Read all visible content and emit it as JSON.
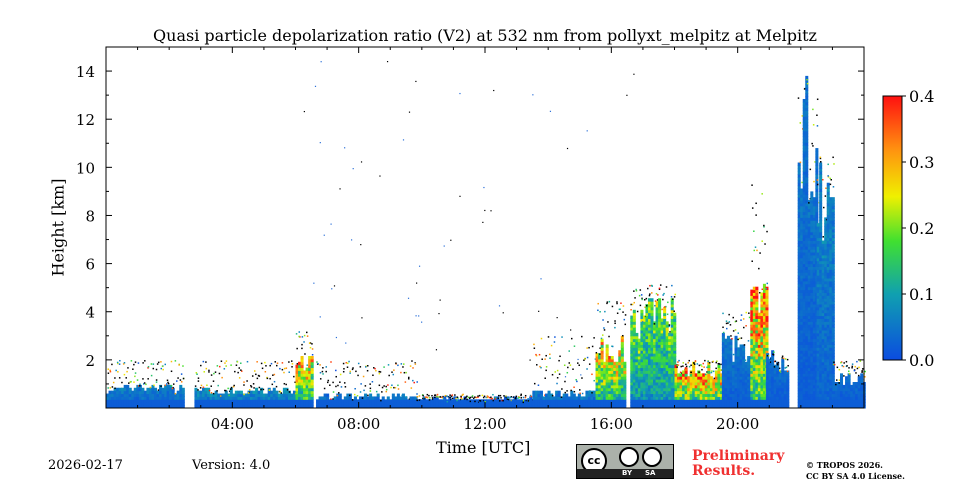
{
  "title": "Quasi particle depolarization ratio (V2) at 532 nm from pollyxt_melpitz at Melpitz",
  "footer": {
    "date": "2026-02-17",
    "version": "Version: 4.0",
    "preliminary_line1": "Preliminary",
    "preliminary_line2": "Results.",
    "copyright_line1": "© TROPOS 2026.",
    "copyright_line2": "CC BY SA 4.0 License.",
    "cc_by": "BY",
    "cc_sa": "SA",
    "cc": "cc"
  },
  "chart_data": {
    "type": "heatmap",
    "title": "Quasi particle depolarization ratio (V2) at 532 nm from pollyxt_melpitz at Melpitz",
    "xlabel": "Time [UTC]",
    "ylabel": "Height [km]",
    "xlim": [
      0,
      24
    ],
    "ylim": [
      0,
      15
    ],
    "xticks": [
      {
        "v": 4,
        "label": "04:00"
      },
      {
        "v": 8,
        "label": "08:00"
      },
      {
        "v": 12,
        "label": "12:00"
      },
      {
        "v": 16,
        "label": "16:00"
      },
      {
        "v": 20,
        "label": "20:00"
      }
    ],
    "yticks": [
      {
        "v": 2,
        "label": "2"
      },
      {
        "v": 4,
        "label": "4"
      },
      {
        "v": 6,
        "label": "6"
      },
      {
        "v": 8,
        "label": "8"
      },
      {
        "v": 10,
        "label": "10"
      },
      {
        "v": 12,
        "label": "12"
      },
      {
        "v": 14,
        "label": "14"
      }
    ],
    "colorbar": {
      "range": [
        0,
        0.4
      ],
      "ticks": [
        "0.0",
        "0.1",
        "0.2",
        "0.3",
        "0.4"
      ],
      "colormap": "jet"
    },
    "gaps_h": [
      [
        2.45,
        2.8
      ],
      [
        6.5,
        6.65
      ],
      [
        16.45,
        16.6
      ]
    ],
    "segments": [
      {
        "t0": 0,
        "t1": 2.45,
        "top": 0.8,
        "val": 0.06,
        "noise_top": 2.0
      },
      {
        "t0": 2.8,
        "t1": 6.0,
        "top": 0.7,
        "val": 0.08,
        "noise_top": 2.0
      },
      {
        "t0": 6.0,
        "t1": 6.5,
        "top": 1.8,
        "val": 0.3,
        "noise_top": 3.2
      },
      {
        "t0": 6.65,
        "t1": 9.8,
        "top": 0.45,
        "val": 0.05,
        "noise_top": 2.0
      },
      {
        "t0": 9.8,
        "t1": 13.5,
        "top": 0.35,
        "val": 0.02,
        "noise_top": 0.6
      },
      {
        "t0": 13.5,
        "t1": 15.5,
        "top": 0.6,
        "val": 0.06,
        "noise_top": 3.0
      },
      {
        "t0": 15.5,
        "t1": 16.45,
        "top": 2.5,
        "val": 0.28,
        "noise_top": 4.5
      },
      {
        "t0": 16.6,
        "t1": 18.0,
        "top": 3.8,
        "val": 0.2,
        "noise_top": 5.2
      },
      {
        "t0": 18.0,
        "t1": 19.5,
        "top": 1.6,
        "val": 0.34,
        "noise_top": 2.0
      },
      {
        "t0": 19.5,
        "t1": 20.5,
        "top": 2.6,
        "val": 0.05,
        "noise_top": 4.0
      },
      {
        "t0": 20.4,
        "t1": 20.9,
        "top": 4.6,
        "val": 0.36,
        "noise_top": 9.5
      },
      {
        "t0": 20.9,
        "t1": 21.6,
        "top": 2.0,
        "val": 0.04,
        "noise_top": 2.2
      },
      {
        "t0": 21.9,
        "t1": 22.5,
        "top": 11.5,
        "val": 0.05,
        "noise_top": 13.5
      },
      {
        "t0": 22.5,
        "t1": 23.0,
        "top": 9.0,
        "val": 0.07,
        "noise_top": 10.5
      },
      {
        "t0": 23.0,
        "t1": 24,
        "top": 1.2,
        "val": 0.04,
        "noise_top": 2.0
      }
    ]
  }
}
